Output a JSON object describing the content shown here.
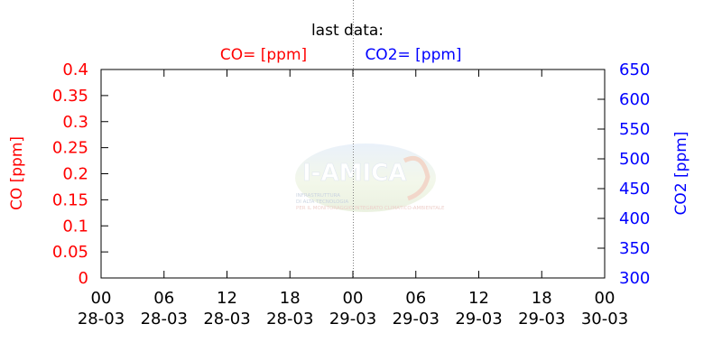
{
  "header": {
    "last_data_label": "last data:",
    "co_label": "CO= [ppm]",
    "co2_label": "CO2= [ppm]"
  },
  "watermark": {
    "logo_text": "I-AMICA",
    "line1": "INFRASTRUTTURA",
    "line2": "DI ALTA TECNOLOGIA",
    "line3": "PER IL MONITORAGGIO INTEGRATO CLIMATICO-AMBIENTALE"
  },
  "colors": {
    "co": "#ff0000",
    "co2": "#0000ff",
    "axis": "#000000",
    "divider": "#808080"
  },
  "chart_data": {
    "type": "line",
    "title": "",
    "xlabel": "",
    "x_ticks": [
      {
        "time": "00",
        "date": "28-03"
      },
      {
        "time": "06",
        "date": "28-03"
      },
      {
        "time": "12",
        "date": "28-03"
      },
      {
        "time": "18",
        "date": "28-03"
      },
      {
        "time": "00",
        "date": "29-03"
      },
      {
        "time": "06",
        "date": "29-03"
      },
      {
        "time": "12",
        "date": "29-03"
      },
      {
        "time": "18",
        "date": "29-03"
      },
      {
        "time": "00",
        "date": "30-03"
      }
    ],
    "x_range": [
      "28-03 00",
      "30-03 00"
    ],
    "divider_at": "29-03 00",
    "y_left": {
      "label": "CO [ppm]",
      "ylim": [
        0,
        0.4
      ],
      "ticks": [
        "0",
        "0.05",
        "0.1",
        "0.15",
        "0.2",
        "0.25",
        "0.3",
        "0.35",
        "0.4"
      ]
    },
    "y_right": {
      "label": "CO2 [ppm]",
      "ylim": [
        300,
        650
      ],
      "ticks": [
        "300",
        "350",
        "400",
        "450",
        "500",
        "550",
        "600",
        "650"
      ]
    },
    "series": [
      {
        "name": "CO",
        "axis": "left",
        "values": []
      },
      {
        "name": "CO2",
        "axis": "right",
        "values": []
      }
    ],
    "grid": false
  }
}
